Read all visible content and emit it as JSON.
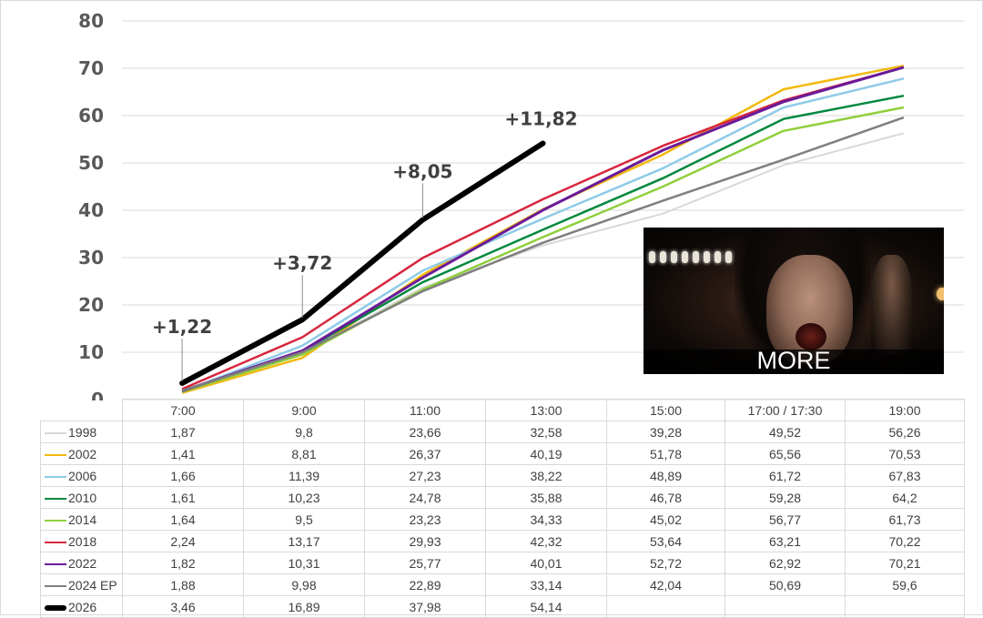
{
  "chart_data": {
    "type": "line",
    "title": "",
    "xlabel": "",
    "ylabel": "",
    "ylim": [
      0,
      80
    ],
    "yticks": [
      "0",
      "10",
      "20",
      "30",
      "40",
      "50",
      "60",
      "70",
      "80"
    ],
    "grid": true,
    "legend_placement": "data-table",
    "categories": [
      "7:00",
      "9:00",
      "11:00",
      "13:00",
      "15:00",
      "17:00 / 17:30",
      "19:00"
    ],
    "series": [
      {
        "name": "1998",
        "color": "#d9d9d9",
        "width": 2,
        "values": [
          1.87,
          9.8,
          23.66,
          32.58,
          39.28,
          49.52,
          56.26
        ],
        "labels": [
          "1,87",
          "9,8",
          "23,66",
          "32,58",
          "39,28",
          "49,52",
          "56,26"
        ]
      },
      {
        "name": "2002",
        "color": "#f2b90f",
        "width": 2.5,
        "values": [
          1.41,
          8.81,
          26.37,
          40.19,
          51.78,
          65.56,
          70.53
        ],
        "labels": [
          "1,41",
          "8,81",
          "26,37",
          "40,19",
          "51,78",
          "65,56",
          "70,53"
        ]
      },
      {
        "name": "2006",
        "color": "#8fcbe8",
        "width": 2.5,
        "values": [
          1.66,
          11.39,
          27.23,
          38.22,
          48.89,
          61.72,
          67.83
        ],
        "labels": [
          "1,66",
          "11,39",
          "27,23",
          "38,22",
          "48,89",
          "61,72",
          "67,83"
        ]
      },
      {
        "name": "2010",
        "color": "#00883e",
        "width": 2.5,
        "values": [
          1.61,
          10.23,
          24.78,
          35.88,
          46.78,
          59.28,
          64.2
        ],
        "labels": [
          "1,61",
          "10,23",
          "24,78",
          "35,88",
          "46,78",
          "59,28",
          "64,2"
        ]
      },
      {
        "name": "2014",
        "color": "#8fcf3c",
        "width": 2.5,
        "values": [
          1.64,
          9.5,
          23.23,
          34.33,
          45.02,
          56.77,
          61.73
        ],
        "labels": [
          "1,64",
          "9,5",
          "23,23",
          "34,33",
          "45,02",
          "56,77",
          "61,73"
        ]
      },
      {
        "name": "2018",
        "color": "#d7263d",
        "width": 2.5,
        "values": [
          2.24,
          13.17,
          29.93,
          42.32,
          53.64,
          63.21,
          70.22
        ],
        "labels": [
          "2,24",
          "13,17",
          "29,93",
          "42,32",
          "53,64",
          "63,21",
          "70,22"
        ]
      },
      {
        "name": "2022",
        "color": "#6a1b9a",
        "width": 3,
        "values": [
          1.82,
          10.31,
          25.77,
          40.01,
          52.72,
          62.92,
          70.21
        ],
        "labels": [
          "1,82",
          "10,31",
          "25,77",
          "40,01",
          "52,72",
          "62,92",
          "70,21"
        ]
      },
      {
        "name": "2024 EP",
        "color": "#7f7f7f",
        "width": 2.5,
        "values": [
          1.88,
          9.98,
          22.89,
          33.14,
          42.04,
          50.69,
          59.6
        ],
        "labels": [
          "1,88",
          "9,98",
          "22,89",
          "33,14",
          "42,04",
          "50,69",
          "59,6"
        ]
      },
      {
        "name": "2026",
        "color": "#000000",
        "width": 6,
        "values": [
          3.46,
          16.89,
          37.98,
          54.14,
          null,
          null,
          null
        ],
        "labels": [
          "3,46",
          "16,89",
          "37,98",
          "54,14",
          "",
          "",
          ""
        ]
      }
    ],
    "annotations": [
      {
        "text": "+1,22",
        "category_index": 0,
        "series": "2026"
      },
      {
        "text": "+3,72",
        "category_index": 1,
        "series": "2026"
      },
      {
        "text": "+8,05",
        "category_index": 2,
        "series": "2026"
      },
      {
        "text": "+11,82",
        "category_index": 3,
        "series": "2026"
      }
    ]
  },
  "meme": {
    "caption": "MORE"
  }
}
